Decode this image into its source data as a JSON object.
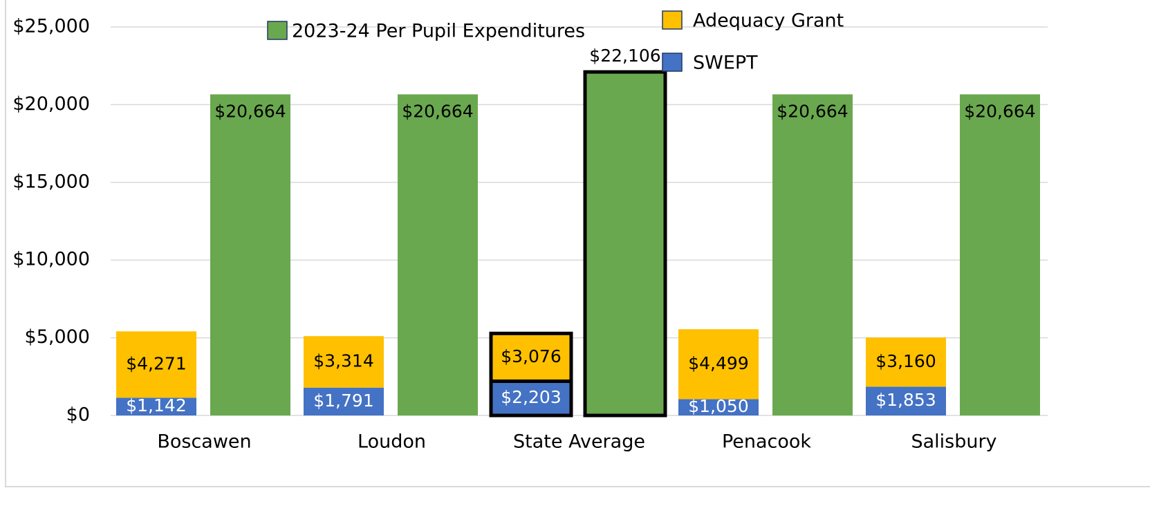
{
  "chart_data": {
    "type": "bar",
    "categories": [
      "Boscawen",
      "Loudon",
      "State Average",
      "Penacook",
      "Salisbury"
    ],
    "series": [
      {
        "name": "SWEPT",
        "color": "#4472c4",
        "position": 0,
        "values": [
          1142,
          1791,
          2203,
          1050,
          1853
        ],
        "value_labels": [
          "$1,142",
          "$1,791",
          "$2,203",
          "$1,050",
          "$1,853"
        ]
      },
      {
        "name": "Adequacy Grant",
        "color": "#ffc000",
        "position": 0,
        "values": [
          4271,
          3314,
          3076,
          4499,
          3160
        ],
        "value_labels": [
          "$4,271",
          "$3,314",
          "$3,076",
          "$4,499",
          "$3,160"
        ]
      },
      {
        "name": "2023-24 Per Pupil Expenditures",
        "color": "#6aa84f",
        "position": 1,
        "values": [
          20664,
          20664,
          22106,
          20664,
          20664
        ],
        "value_labels": [
          "$20,664",
          "$20,664",
          "$22,106",
          "$20,664",
          "$20,664"
        ]
      }
    ],
    "highlight": "State Average",
    "ylim": [
      0,
      25000
    ],
    "yticks": [
      {
        "value": 0,
        "label": "$0"
      },
      {
        "value": 5000,
        "label": "$5,000"
      },
      {
        "value": 10000,
        "label": "$10,000"
      },
      {
        "value": 15000,
        "label": "$15,000"
      },
      {
        "value": 20000,
        "label": "$20,000"
      },
      {
        "value": 25000,
        "label": "$25,000"
      }
    ],
    "grid": true
  }
}
